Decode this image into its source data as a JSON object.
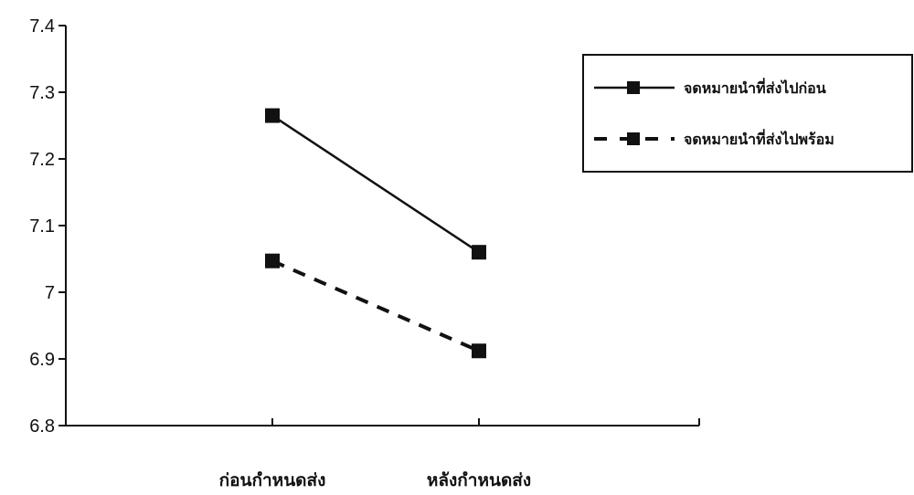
{
  "chart_data": {
    "type": "line",
    "title": "",
    "xlabel": "",
    "ylabel": "",
    "categories": [
      "ก่อนกำหนดส่ง",
      "หลังกำหนดส่ง"
    ],
    "ylim": [
      6.8,
      7.4
    ],
    "yticks": [
      "6.8",
      "6.9",
      "7",
      "7.1",
      "7.2",
      "7.3",
      "7.4"
    ],
    "grid": false,
    "legend": "top-right",
    "series": [
      {
        "name": "จดหมายนำที่ส่งไปก่อน",
        "values": [
          7.265,
          7.06
        ],
        "line_style": "solid",
        "marker": "square",
        "color": "#111111"
      },
      {
        "name": "จดหมายนำที่ส่งไปพร้อม",
        "values": [
          7.047,
          6.912
        ],
        "line_style": "dashed",
        "marker": "square",
        "color": "#111111"
      }
    ]
  }
}
